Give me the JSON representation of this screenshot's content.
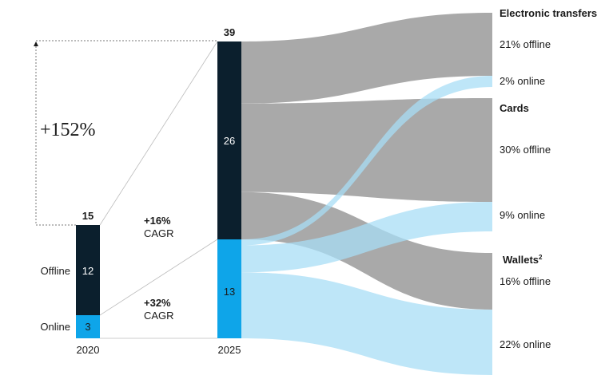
{
  "chart_data": {
    "type": "sankey",
    "growth_label": "+152%",
    "bars": [
      {
        "year": "2020",
        "total": "15",
        "offline": 12,
        "online": 3,
        "offline_label": "Offline",
        "online_label": "Online"
      },
      {
        "year": "2025",
        "total": "39",
        "offline": 26,
        "online": 13
      }
    ],
    "cagr": [
      {
        "value": "+16%",
        "label": "CAGR"
      },
      {
        "value": "+32%",
        "label": "CAGR"
      }
    ],
    "categories": [
      {
        "name": "Electronic transfers",
        "name_superscript": "",
        "segments": [
          "21% offline",
          "2% online"
        ]
      },
      {
        "name": "Cards",
        "name_superscript": "",
        "segments": [
          "30% offline",
          "9% online"
        ]
      },
      {
        "name": "Wallets",
        "name_superscript": "2",
        "segments": [
          "16% offline",
          "22% online"
        ]
      }
    ],
    "flows": [
      {
        "from": "offline",
        "to": "21% offline",
        "share": 21
      },
      {
        "from": "offline",
        "to": "30% offline",
        "share": 30
      },
      {
        "from": "offline",
        "to": "16% offline",
        "share": 16
      },
      {
        "from": "online",
        "to": "2% online",
        "share": 2
      },
      {
        "from": "online",
        "to": "9% online",
        "share": 9
      },
      {
        "from": "online",
        "to": "22% online",
        "share": 22
      }
    ],
    "colors": {
      "offline_bar": "#0b1f2d",
      "online_bar": "#0ea5e9",
      "offline_flow": "#a9a9a9",
      "online_flow": "#a8ddf5"
    }
  }
}
